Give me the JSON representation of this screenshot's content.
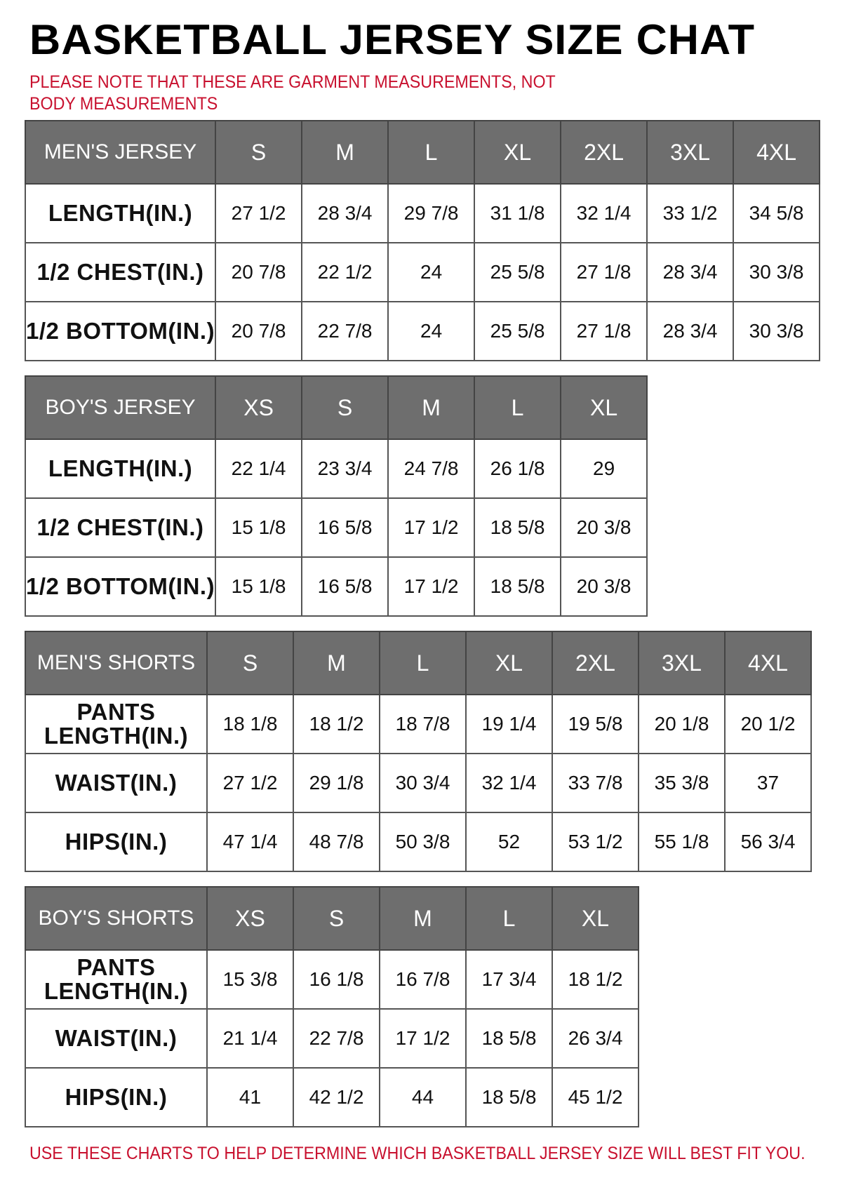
{
  "title": "BASKETBALL JERSEY SIZE CHAT",
  "note": "PLEASE NOTE THAT THESE ARE GARMENT MEASUREMENTS, NOT BODY MEASUREMENTS",
  "footer": "USE THESE CHARTS TO HELP DETERMINE WHICH BASKETBALL JERSEY SIZE WILL BEST FIT YOU.",
  "colors": {
    "header_bg": "#6e6e6e",
    "note_red": "#c8102e"
  },
  "tables": [
    {
      "heading": "MEN'S JERSEY",
      "sizes": [
        "S",
        "M",
        "L",
        "XL",
        "2XL",
        "3XL",
        "4XL"
      ],
      "rows": [
        {
          "label": "LENGTH(IN.)",
          "values": [
            "27 1/2",
            "28 3/4",
            "29 7/8",
            "31 1/8",
            "32 1/4",
            "33 1/2",
            "34 5/8"
          ]
        },
        {
          "label": "1/2 CHEST(IN.)",
          "values": [
            "20 7/8",
            "22 1/2",
            "24",
            "25 5/8",
            "27 1/8",
            "28 3/4",
            "30 3/8"
          ]
        },
        {
          "label": "1/2 BOTTOM(IN.)",
          "values": [
            "20 7/8",
            "22 7/8",
            "24",
            "25 5/8",
            "27 1/8",
            "28 3/4",
            "30 3/8"
          ]
        }
      ]
    },
    {
      "heading": "BOY'S JERSEY",
      "sizes": [
        "XS",
        "S",
        "M",
        "L",
        "XL"
      ],
      "rows": [
        {
          "label": "LENGTH(IN.)",
          "values": [
            "22 1/4",
            "23 3/4",
            "24 7/8",
            "26 1/8",
            "29"
          ]
        },
        {
          "label": "1/2 CHEST(IN.)",
          "values": [
            "15 1/8",
            "16 5/8",
            "17 1/2",
            "18 5/8",
            "20 3/8"
          ]
        },
        {
          "label": "1/2 BOTTOM(IN.)",
          "values": [
            "15 1/8",
            "16 5/8",
            "17 1/2",
            "18 5/8",
            "20 3/8"
          ]
        }
      ]
    },
    {
      "heading": "MEN'S SHORTS",
      "sizes": [
        "S",
        "M",
        "L",
        "XL",
        "2XL",
        "3XL",
        "4XL"
      ],
      "rows": [
        {
          "label": "PANTS LENGTH(IN.)",
          "values": [
            "18 1/8",
            "18 1/2",
            "18 7/8",
            "19 1/4",
            "19 5/8",
            "20 1/8",
            "20 1/2"
          ]
        },
        {
          "label": "WAIST(IN.)",
          "values": [
            "27 1/2",
            "29 1/8",
            "30 3/4",
            "32 1/4",
            "33 7/8",
            "35 3/8",
            "37"
          ]
        },
        {
          "label": "HIPS(IN.)",
          "values": [
            "47 1/4",
            "48 7/8",
            "50 3/8",
            "52",
            "53 1/2",
            "55 1/8",
            "56 3/4"
          ]
        }
      ]
    },
    {
      "heading": "BOY'S SHORTS",
      "sizes": [
        "XS",
        "S",
        "M",
        "L",
        "XL"
      ],
      "rows": [
        {
          "label": "PANTS LENGTH(IN.)",
          "values": [
            "15 3/8",
            "16 1/8",
            "16 7/8",
            "17 3/4",
            "18 1/2"
          ]
        },
        {
          "label": "WAIST(IN.)",
          "values": [
            "21 1/4",
            "22 7/8",
            "17 1/2",
            "18 5/8",
            "26 3/4"
          ]
        },
        {
          "label": "HIPS(IN.)",
          "values": [
            "41",
            "42 1/2",
            "44",
            "18 5/8",
            "45 1/2"
          ]
        }
      ]
    }
  ]
}
